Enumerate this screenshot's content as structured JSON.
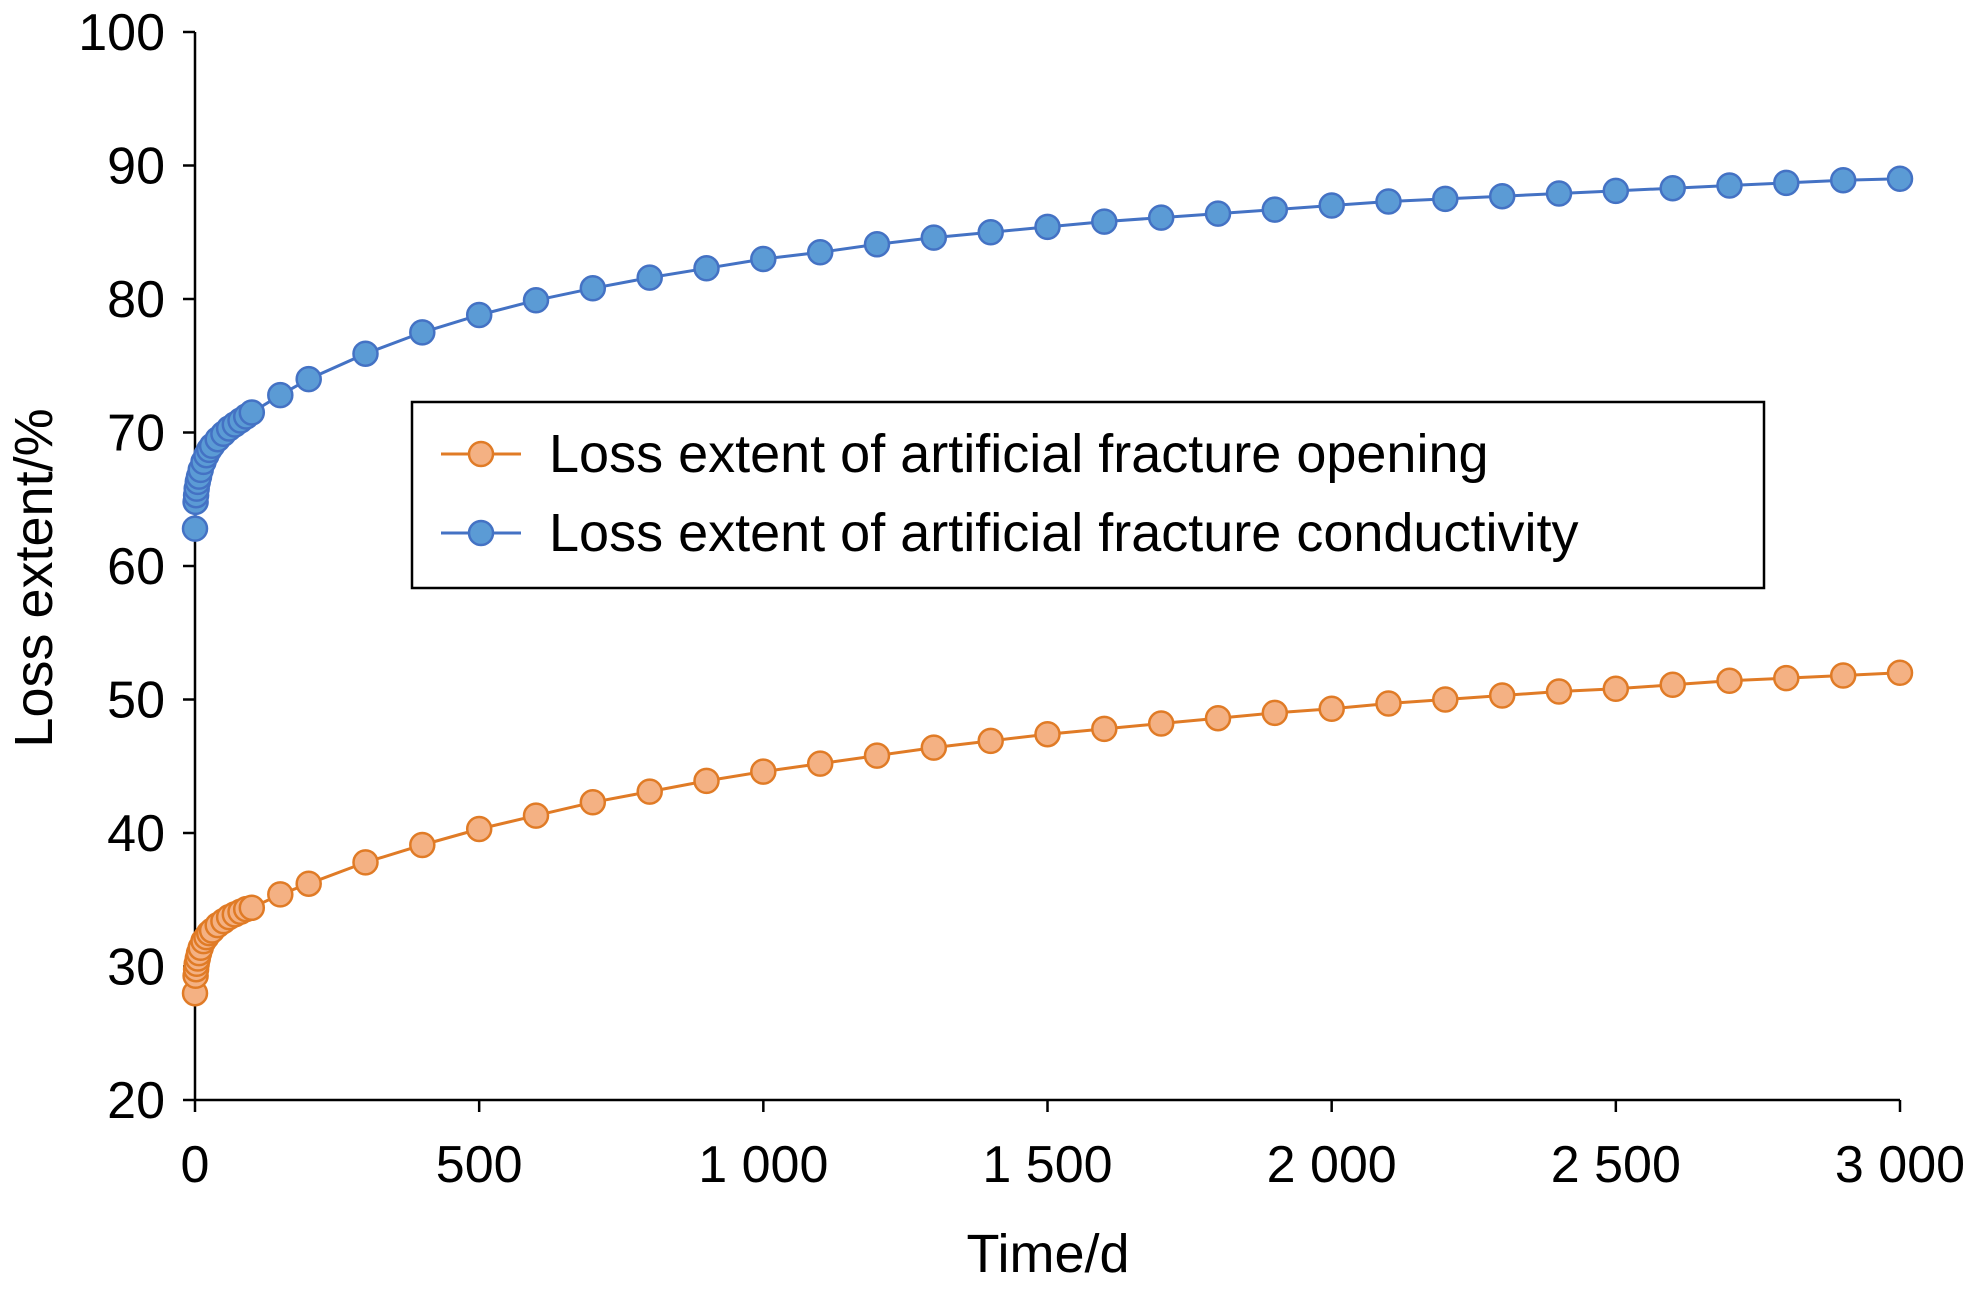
{
  "chart_data": {
    "type": "line",
    "xlabel": "Time/d",
    "ylabel": "Loss extent/%",
    "xlim": [
      0,
      3000
    ],
    "ylim": [
      20,
      100
    ],
    "x_ticks": [
      0,
      500,
      1000,
      1500,
      2000,
      2500,
      3000
    ],
    "x_tick_labels": [
      "0",
      "500",
      "1 000",
      "1 500",
      "2 000",
      "2 500",
      "3 000"
    ],
    "y_ticks": [
      20,
      30,
      40,
      50,
      60,
      70,
      80,
      90,
      100
    ],
    "y_tick_labels": [
      "20",
      "30",
      "40",
      "50",
      "60",
      "70",
      "80",
      "90",
      "100"
    ],
    "grid": false,
    "legend_position": "center",
    "x": [
      0,
      1,
      2,
      3,
      5,
      7,
      10,
      15,
      20,
      25,
      30,
      40,
      50,
      60,
      70,
      80,
      90,
      100,
      150,
      200,
      300,
      400,
      500,
      600,
      700,
      800,
      900,
      1000,
      1100,
      1200,
      1300,
      1400,
      1500,
      1600,
      1700,
      1800,
      1900,
      2000,
      2100,
      2200,
      2300,
      2400,
      2500,
      2600,
      2700,
      2800,
      2900,
      3000
    ],
    "series": [
      {
        "name": "Loss extent of artificial fracture opening",
        "color": "#E07B26",
        "marker_fill": "#F4B183",
        "values": [
          28.0,
          29.3,
          29.8,
          30.2,
          30.6,
          31.0,
          31.4,
          31.9,
          32.2,
          32.5,
          32.7,
          33.1,
          33.4,
          33.7,
          33.9,
          34.1,
          34.3,
          34.4,
          35.4,
          36.2,
          37.8,
          39.1,
          40.3,
          41.3,
          42.3,
          43.1,
          43.9,
          44.6,
          45.2,
          45.8,
          46.4,
          46.9,
          47.4,
          47.8,
          48.2,
          48.6,
          49.0,
          49.3,
          49.7,
          50.0,
          50.3,
          50.6,
          50.8,
          51.1,
          51.4,
          51.6,
          51.8,
          52.0
        ]
      },
      {
        "name": "Loss extent of artificial fracture conductivity",
        "color": "#4472C4",
        "marker_fill": "#5B9BD5",
        "values": [
          62.8,
          64.8,
          65.3,
          65.8,
          66.3,
          66.7,
          67.2,
          67.8,
          68.3,
          68.7,
          69.0,
          69.5,
          69.9,
          70.3,
          70.6,
          70.9,
          71.2,
          71.5,
          72.8,
          74.0,
          75.9,
          77.5,
          78.8,
          79.9,
          80.8,
          81.6,
          82.3,
          83.0,
          83.5,
          84.1,
          84.6,
          85.0,
          85.4,
          85.8,
          86.1,
          86.4,
          86.7,
          87.0,
          87.3,
          87.5,
          87.7,
          87.9,
          88.1,
          88.3,
          88.5,
          88.7,
          88.9,
          89.0
        ]
      }
    ]
  }
}
